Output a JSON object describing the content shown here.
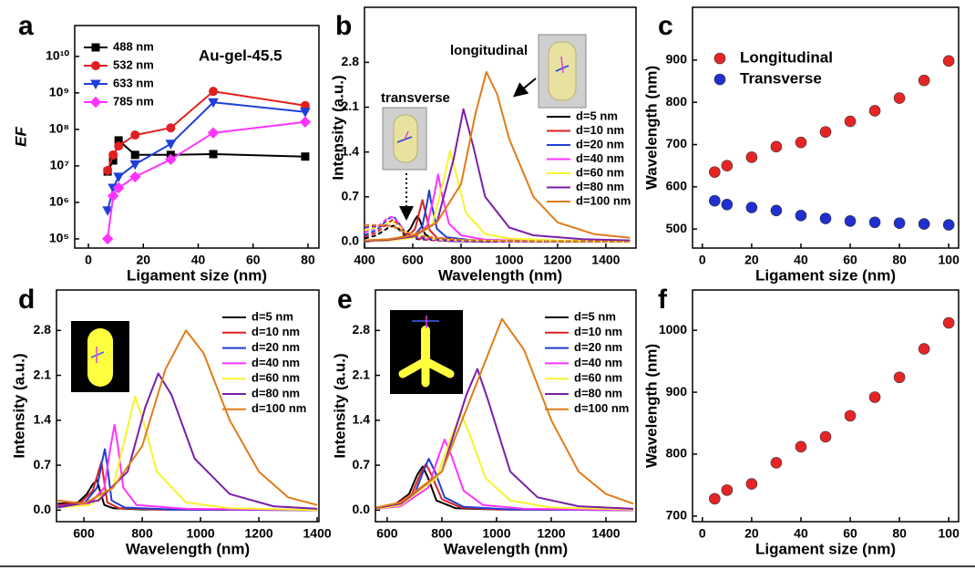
{
  "chart_data": [
    {
      "type": "line",
      "panel": "a",
      "annotations": [
        "Au-gel-45.5"
      ],
      "x_label": "Ligament size (nm)",
      "y_label": "EF",
      "log_y": true,
      "x": [
        7,
        9,
        11,
        17,
        30,
        45.5,
        79
      ],
      "xlim": [
        -5,
        84
      ],
      "xticks": [
        0,
        20,
        40,
        60,
        80
      ],
      "ylim": [
        56000,
        70000000000
      ],
      "yticks": [
        {
          "value": 100000,
          "label": "10⁵"
        },
        {
          "value": 1000000,
          "label": "10⁶"
        },
        {
          "value": 10000000,
          "label": "10⁷"
        },
        {
          "value": 100000000,
          "label": "10⁸"
        },
        {
          "value": 1000000000,
          "label": "10⁹"
        },
        {
          "value": 10000000000,
          "label": "10¹⁰"
        }
      ],
      "legend": "upper left",
      "series": [
        {
          "name": "488 nm",
          "color": "#000000",
          "marker": "square",
          "values": [
            7000000,
            14000000,
            50000000,
            20000000,
            20000000,
            21000000,
            18000000
          ]
        },
        {
          "name": "532 nm",
          "color": "#e02020",
          "marker": "circle",
          "values": [
            7500000,
            20000000,
            35000000,
            70000000,
            110000000,
            1100000000,
            450000000
          ]
        },
        {
          "name": "633 nm",
          "color": "#1f3fd8",
          "marker": "triangle-down",
          "values": [
            600000,
            2500000,
            5000000,
            11000000,
            40000000,
            550000000,
            300000000
          ]
        },
        {
          "name": "785 nm",
          "color": "#ff33ff",
          "marker": "diamond",
          "values": [
            100000,
            1500000,
            2500000,
            5000000,
            15000000,
            80000000,
            160000000
          ]
        }
      ]
    },
    {
      "type": "line",
      "panel": "b",
      "annotations": [
        "transverse",
        "longitudinal"
      ],
      "x_label": "Wavelength (nm)",
      "y_label": "Intensity (a.u.)",
      "xlim": [
        400,
        1525
      ],
      "xticks": [
        400,
        600,
        800,
        1000,
        1200,
        1400
      ],
      "ylim": [
        -0.1,
        3.66
      ],
      "yticks": [
        {
          "value": 0,
          "label": "0.0"
        },
        0.7,
        1.4,
        2.1,
        2.8
      ],
      "legend": "center right",
      "transverse_x": [
        400,
        450,
        500,
        520,
        540,
        570,
        620,
        700,
        800,
        1000,
        1500
      ],
      "series": [
        {
          "name": "d=5 nm",
          "color": "#000000",
          "x": [
            400,
            500,
            560,
            590,
            610,
            620,
            630,
            650,
            680,
            750,
            900,
            1500
          ],
          "values": [
            0.01,
            0.02,
            0.08,
            0.2,
            0.35,
            0.4,
            0.33,
            0.12,
            0.04,
            0.01,
            0,
            0
          ],
          "transverse_values": [
            0.05,
            0.1,
            0.22,
            0.25,
            0.2,
            0.1,
            0.04,
            0.02,
            0.01,
            0,
            0
          ]
        },
        {
          "name": "d=10 nm",
          "color": "#e02020",
          "x": [
            400,
            500,
            580,
            610,
            630,
            640,
            650,
            670,
            700,
            800,
            1000,
            1500
          ],
          "values": [
            0.01,
            0.02,
            0.08,
            0.2,
            0.5,
            0.65,
            0.5,
            0.18,
            0.06,
            0.02,
            0.01,
            0
          ],
          "transverse_values": [
            0.08,
            0.14,
            0.3,
            0.35,
            0.25,
            0.12,
            0.05,
            0.02,
            0.01,
            0,
            0
          ]
        },
        {
          "name": "d=20 nm",
          "color": "#1f3fd8",
          "x": [
            400,
            500,
            600,
            640,
            660,
            668,
            676,
            700,
            740,
            850,
            1100,
            1500
          ],
          "values": [
            0.01,
            0.02,
            0.07,
            0.25,
            0.62,
            0.8,
            0.62,
            0.2,
            0.07,
            0.02,
            0.01,
            0
          ],
          "transverse_values": [
            0.1,
            0.18,
            0.36,
            0.4,
            0.3,
            0.14,
            0.06,
            0.03,
            0.01,
            0,
            0
          ]
        },
        {
          "name": "d=40 nm",
          "color": "#ff33ff",
          "x": [
            400,
            500,
            600,
            660,
            690,
            705,
            720,
            750,
            800,
            900,
            1100,
            1500
          ],
          "values": [
            0.01,
            0.02,
            0.06,
            0.25,
            0.75,
            1.05,
            0.75,
            0.28,
            0.1,
            0.03,
            0.01,
            0
          ],
          "transverse_values": [
            0.14,
            0.22,
            0.38,
            0.38,
            0.3,
            0.15,
            0.07,
            0.03,
            0.01,
            0,
            0
          ]
        },
        {
          "name": "d=60 nm",
          "color": "#f5f52a",
          "x": [
            400,
            500,
            600,
            680,
            730,
            755,
            780,
            820,
            900,
            1000,
            1200,
            1500
          ],
          "values": [
            0.01,
            0.02,
            0.06,
            0.25,
            1.0,
            1.42,
            1.05,
            0.45,
            0.12,
            0.05,
            0.02,
            0.01
          ],
          "transverse_values": [
            0.18,
            0.22,
            0.3,
            0.3,
            0.25,
            0.15,
            0.08,
            0.04,
            0.02,
            0.01,
            0
          ]
        },
        {
          "name": "d=80 nm",
          "color": "#7a1fa8",
          "x": [
            400,
            500,
            600,
            700,
            770,
            810,
            850,
            900,
            1000,
            1100,
            1300,
            1500
          ],
          "values": [
            0.01,
            0.03,
            0.08,
            0.3,
            1.3,
            2.07,
            1.5,
            0.7,
            0.22,
            0.1,
            0.04,
            0.02
          ],
          "transverse_values": [
            0.22,
            0.24,
            0.25,
            0.24,
            0.2,
            0.14,
            0.08,
            0.05,
            0.02,
            0.01,
            0
          ]
        },
        {
          "name": "d=100 nm",
          "color": "#e07b1a",
          "x": [
            400,
            500,
            600,
            700,
            800,
            860,
            905,
            950,
            1000,
            1100,
            1200,
            1350,
            1500
          ],
          "values": [
            0.02,
            0.04,
            0.1,
            0.3,
            0.9,
            2.0,
            2.65,
            2.3,
            1.6,
            0.7,
            0.3,
            0.12,
            0.06
          ],
          "transverse_values": [
            0.26,
            0.26,
            0.25,
            0.23,
            0.2,
            0.15,
            0.1,
            0.06,
            0.03,
            0.01,
            0
          ]
        }
      ]
    },
    {
      "type": "scatter",
      "panel": "c",
      "x_label": "Ligament size (nm)",
      "y_label": "Wavelength (nm)",
      "x": [
        5,
        10,
        20,
        30,
        40,
        50,
        60,
        70,
        80,
        90,
        100
      ],
      "xlim": [
        -4,
        104
      ],
      "xticks": [
        0,
        20,
        40,
        60,
        80,
        100
      ],
      "ylim": [
        455,
        1025
      ],
      "yticks": [
        500,
        600,
        700,
        800,
        900
      ],
      "legend": "upper left",
      "series": [
        {
          "name": "Longitudinal",
          "color": "#e52525",
          "values": [
            635,
            650,
            670,
            695,
            705,
            730,
            755,
            780,
            810,
            852,
            898
          ]
        },
        {
          "name": "Transverse",
          "color": "#1f2fd0",
          "values": [
            567,
            558,
            551,
            544,
            532,
            525,
            519,
            516,
            514,
            512,
            510
          ]
        }
      ]
    },
    {
      "type": "line",
      "panel": "d",
      "x_label": "Wavelength (nm)",
      "y_label": "Intensity (a.u.)",
      "xlim": [
        506,
        1406
      ],
      "xticks": [
        600,
        800,
        1000,
        1200,
        1400
      ],
      "ylim": [
        -0.18,
        3.43
      ],
      "yticks": [
        {
          "value": 0,
          "label": "0.0"
        },
        0.7,
        1.4,
        2.1,
        2.8
      ],
      "legend": "upper right",
      "series": [
        {
          "name": "d=5 nm",
          "color": "#000000",
          "x": [
            510,
            580,
            610,
            630,
            645,
            655,
            670,
            700,
            800,
            1400
          ],
          "values": [
            0.1,
            0.12,
            0.25,
            0.4,
            0.47,
            0.3,
            0.08,
            0.03,
            0.01,
            0
          ]
        },
        {
          "name": "d=10 nm",
          "color": "#e02020",
          "x": [
            510,
            590,
            630,
            650,
            660,
            668,
            680,
            720,
            850,
            1400
          ],
          "values": [
            0.08,
            0.12,
            0.3,
            0.6,
            0.75,
            0.5,
            0.12,
            0.03,
            0.01,
            0
          ]
        },
        {
          "name": "d=20 nm",
          "color": "#1f3fd8",
          "x": [
            510,
            600,
            645,
            662,
            672,
            680,
            695,
            740,
            900,
            1400
          ],
          "values": [
            0.06,
            0.1,
            0.35,
            0.75,
            0.95,
            0.7,
            0.15,
            0.04,
            0.01,
            0
          ]
        },
        {
          "name": "d=40 nm",
          "color": "#ff33ff",
          "x": [
            510,
            620,
            670,
            690,
            705,
            715,
            735,
            780,
            950,
            1400
          ],
          "values": [
            0.05,
            0.1,
            0.35,
            0.95,
            1.33,
            1.05,
            0.35,
            0.08,
            0.02,
            0
          ]
        },
        {
          "name": "d=60 nm",
          "color": "#f5f52a",
          "x": [
            510,
            620,
            700,
            740,
            775,
            800,
            850,
            950,
            1100,
            1400
          ],
          "values": [
            0.04,
            0.08,
            0.35,
            1.1,
            1.77,
            1.45,
            0.6,
            0.12,
            0.03,
            0
          ]
        },
        {
          "name": "d=80 nm",
          "color": "#7a1fa8",
          "x": [
            510,
            650,
            750,
            810,
            855,
            900,
            980,
            1100,
            1250,
            1400
          ],
          "values": [
            0.04,
            0.15,
            0.6,
            1.6,
            2.13,
            1.8,
            0.8,
            0.25,
            0.06,
            0.02
          ]
        },
        {
          "name": "d=100 nm",
          "color": "#e07b1a",
          "x": [
            510,
            600,
            700,
            800,
            880,
            950,
            1010,
            1100,
            1200,
            1300,
            1400
          ],
          "values": [
            0.15,
            0.1,
            0.35,
            1.0,
            2.2,
            2.8,
            2.45,
            1.4,
            0.6,
            0.2,
            0.08
          ]
        }
      ]
    },
    {
      "type": "line",
      "panel": "e",
      "x_label": "Wavelength (nm)",
      "y_label": "Intensity (a.u.)",
      "xlim": [
        557,
        1510
      ],
      "xticks": [
        600,
        800,
        1000,
        1200,
        1400
      ],
      "ylim": [
        -0.18,
        3.43
      ],
      "yticks": [
        {
          "value": 0,
          "label": "0.0"
        },
        0.7,
        1.4,
        2.1,
        2.8
      ],
      "legend": "upper right",
      "series": [
        {
          "name": "d=5 nm",
          "color": "#000000",
          "x": [
            560,
            620,
            680,
            710,
            730,
            750,
            780,
            850,
            1000,
            1500
          ],
          "values": [
            0.02,
            0.06,
            0.25,
            0.55,
            0.68,
            0.5,
            0.15,
            0.03,
            0.01,
            0
          ]
        },
        {
          "name": "d=10 nm",
          "color": "#e02020",
          "x": [
            560,
            620,
            690,
            720,
            742,
            765,
            800,
            870,
            1000,
            1500
          ],
          "values": [
            0.02,
            0.06,
            0.25,
            0.55,
            0.72,
            0.52,
            0.17,
            0.04,
            0.01,
            0
          ]
        },
        {
          "name": "d=20 nm",
          "color": "#1f3fd8",
          "x": [
            560,
            630,
            700,
            732,
            752,
            775,
            810,
            880,
            1050,
            1500
          ],
          "values": [
            0.02,
            0.06,
            0.25,
            0.6,
            0.8,
            0.6,
            0.2,
            0.05,
            0.01,
            0
          ]
        },
        {
          "name": "d=40 nm",
          "color": "#ff33ff",
          "x": [
            560,
            650,
            750,
            785,
            810,
            835,
            880,
            950,
            1100,
            1500
          ],
          "values": [
            0.02,
            0.06,
            0.35,
            0.8,
            1.1,
            0.85,
            0.3,
            0.08,
            0.02,
            0
          ]
        },
        {
          "name": "d=60 nm",
          "color": "#f5f52a",
          "x": [
            560,
            650,
            780,
            840,
            870,
            900,
            960,
            1050,
            1200,
            1500
          ],
          "values": [
            0.02,
            0.08,
            0.5,
            1.2,
            1.5,
            1.2,
            0.5,
            0.15,
            0.04,
            0.01
          ]
        },
        {
          "name": "d=80 nm",
          "color": "#7a1fa8",
          "x": [
            560,
            650,
            800,
            890,
            930,
            970,
            1050,
            1150,
            1300,
            1500
          ],
          "values": [
            0.03,
            0.1,
            0.6,
            1.8,
            2.2,
            1.7,
            0.6,
            0.2,
            0.06,
            0.02
          ]
        },
        {
          "name": "d=100 nm",
          "color": "#e07b1a",
          "x": [
            560,
            650,
            800,
            920,
            1020,
            1100,
            1200,
            1300,
            1400,
            1500
          ],
          "values": [
            0.04,
            0.12,
            0.6,
            1.9,
            2.98,
            2.5,
            1.4,
            0.6,
            0.25,
            0.1
          ]
        }
      ]
    },
    {
      "type": "scatter",
      "panel": "f",
      "x_label": "Ligament size (nm)",
      "y_label": "Wavelength (nm)",
      "x": [
        5,
        10,
        20,
        30,
        40,
        50,
        60,
        70,
        80,
        90,
        100
      ],
      "xlim": [
        -4,
        104
      ],
      "xticks": [
        0,
        20,
        40,
        60,
        80,
        100
      ],
      "ylim": [
        691,
        1065
      ],
      "yticks": [
        700,
        800,
        900,
        1000
      ],
      "series": [
        {
          "color": "#e52525",
          "values": [
            728,
            742,
            752,
            786,
            812,
            828,
            862,
            892,
            924,
            970,
            1012
          ]
        }
      ]
    }
  ]
}
